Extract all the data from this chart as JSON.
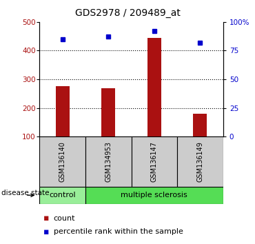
{
  "title": "GDS2978 / 209489_at",
  "samples": [
    "GSM136140",
    "GSM134953",
    "GSM136147",
    "GSM136149"
  ],
  "counts": [
    275,
    270,
    445,
    180
  ],
  "percentiles": [
    85,
    87,
    92,
    82
  ],
  "ylim_left": [
    100,
    500
  ],
  "ylim_right": [
    0,
    100
  ],
  "yticks_left": [
    100,
    200,
    300,
    400,
    500
  ],
  "yticks_right": [
    0,
    25,
    50,
    75,
    100
  ],
  "yticklabels_right": [
    "0",
    "25",
    "50",
    "75",
    "100%"
  ],
  "bar_color": "#aa1111",
  "dot_color": "#0000cc",
  "bg_plot": "#ffffff",
  "disease_state": [
    "control",
    "multiple sclerosis",
    "multiple sclerosis",
    "multiple sclerosis"
  ],
  "control_color": "#99ee99",
  "ms_color": "#55dd55",
  "label_bg_color": "#cccccc",
  "legend_count_label": "count",
  "legend_pct_label": "percentile rank within the sample",
  "disease_label": "disease state",
  "fig_width": 3.7,
  "fig_height": 3.54,
  "dpi": 100
}
